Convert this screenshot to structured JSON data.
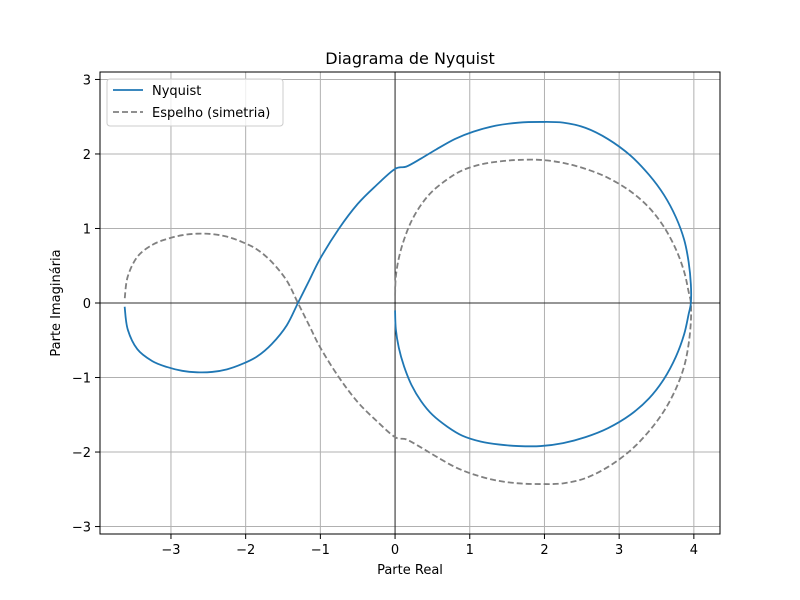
{
  "chart_data": {
    "type": "line",
    "title": "Diagrama de Nyquist",
    "xlabel": "Parte Real",
    "ylabel": "Parte Imaginária",
    "xlim": [
      -3.95,
      4.35
    ],
    "ylim": [
      -3.1,
      3.1
    ],
    "xticks": [
      -3,
      -2,
      -1,
      0,
      1,
      2,
      3,
      4
    ],
    "xtick_labels": [
      "−3",
      "−2",
      "−1",
      "0",
      "1",
      "2",
      "3",
      "4"
    ],
    "yticks": [
      -3,
      -2,
      -1,
      0,
      1,
      2,
      3
    ],
    "ytick_labels": [
      "−3",
      "−2",
      "−1",
      "0",
      "1",
      "2",
      "3"
    ],
    "grid": true,
    "legend_position": "top-left",
    "series": [
      {
        "name": "Nyquist",
        "style": "solid",
        "color": "#1f77b4",
        "x": [
          0.0,
          0.01,
          0.05,
          0.12,
          0.22,
          0.35,
          0.5,
          0.7,
          0.9,
          1.15,
          1.4,
          1.65,
          1.95,
          2.25,
          2.55,
          2.85,
          3.15,
          3.4,
          3.6,
          3.76,
          3.87,
          3.93,
          3.96,
          3.96,
          3.93,
          3.87,
          3.76,
          3.6,
          3.4,
          3.15,
          2.85,
          2.55,
          2.25,
          1.95,
          1.65,
          1.35,
          1.05,
          0.8,
          0.55,
          0.35,
          0.15,
          0.0,
          -0.25,
          -0.5,
          -0.75,
          -1.0,
          -1.15,
          -1.3,
          -1.45,
          -1.65,
          -1.85,
          -2.05,
          -2.25,
          -2.45,
          -2.65,
          -2.85,
          -3.05,
          -3.25,
          -3.45,
          -3.58,
          -3.62
        ],
        "y": [
          -0.1,
          -0.35,
          -0.6,
          -0.85,
          -1.1,
          -1.32,
          -1.5,
          -1.66,
          -1.78,
          -1.86,
          -1.9,
          -1.92,
          -1.92,
          -1.88,
          -1.8,
          -1.68,
          -1.5,
          -1.28,
          -1.02,
          -0.72,
          -0.42,
          -0.15,
          0.0,
          0.25,
          0.55,
          0.85,
          1.15,
          1.45,
          1.72,
          1.98,
          2.2,
          2.35,
          2.42,
          2.43,
          2.42,
          2.38,
          2.3,
          2.2,
          2.06,
          1.94,
          1.83,
          1.8,
          1.58,
          1.33,
          1.0,
          0.6,
          0.3,
          0.0,
          -0.3,
          -0.55,
          -0.72,
          -0.82,
          -0.89,
          -0.925,
          -0.93,
          -0.91,
          -0.86,
          -0.78,
          -0.62,
          -0.35,
          -0.05
        ]
      },
      {
        "name": "Espelho (simetria)",
        "style": "dashed",
        "color": "#808080",
        "x": [
          0.0,
          0.01,
          0.05,
          0.12,
          0.22,
          0.35,
          0.5,
          0.7,
          0.9,
          1.15,
          1.4,
          1.65,
          1.95,
          2.25,
          2.55,
          2.85,
          3.15,
          3.4,
          3.6,
          3.76,
          3.87,
          3.93,
          3.96,
          3.96,
          3.93,
          3.87,
          3.76,
          3.6,
          3.4,
          3.15,
          2.85,
          2.55,
          2.25,
          1.95,
          1.65,
          1.35,
          1.05,
          0.8,
          0.55,
          0.35,
          0.15,
          0.0,
          -0.25,
          -0.5,
          -0.75,
          -1.0,
          -1.15,
          -1.3,
          -1.45,
          -1.65,
          -1.85,
          -2.05,
          -2.25,
          -2.45,
          -2.65,
          -2.85,
          -3.05,
          -3.25,
          -3.45,
          -3.58,
          -3.62
        ],
        "y": [
          0.1,
          0.35,
          0.6,
          0.85,
          1.1,
          1.32,
          1.5,
          1.66,
          1.78,
          1.86,
          1.9,
          1.92,
          1.92,
          1.88,
          1.8,
          1.68,
          1.5,
          1.28,
          1.02,
          0.72,
          0.42,
          0.15,
          0.0,
          -0.25,
          -0.55,
          -0.85,
          -1.15,
          -1.45,
          -1.72,
          -1.98,
          -2.2,
          -2.35,
          -2.42,
          -2.43,
          -2.42,
          -2.38,
          -2.3,
          -2.2,
          -2.06,
          -1.94,
          -1.83,
          -1.8,
          -1.58,
          -1.33,
          -1.0,
          -0.6,
          -0.3,
          0.0,
          0.3,
          0.55,
          0.72,
          0.82,
          0.89,
          0.925,
          0.93,
          0.91,
          0.86,
          0.78,
          0.62,
          0.35,
          0.05
        ]
      }
    ]
  }
}
